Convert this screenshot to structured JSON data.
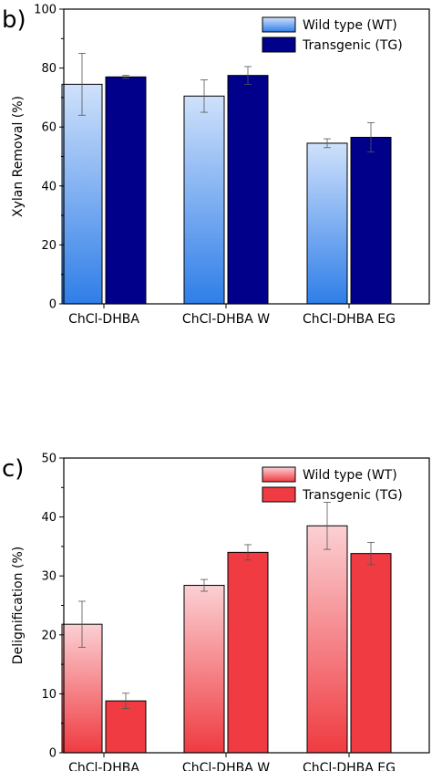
{
  "chart_data": [
    {
      "type": "bar",
      "panel_label": "b)",
      "ylabel": "Xylan Removal (%)",
      "xlabel": "",
      "ylim": [
        0,
        100
      ],
      "yticks": [
        0,
        20,
        40,
        60,
        80,
        100
      ],
      "categories": [
        "ChCl-DHBA",
        "ChCl-DHBA W",
        "ChCl-DHBA EG"
      ],
      "legend_position": "top-right",
      "grid": false,
      "series": [
        {
          "name": "Wild type (WT)",
          "values": [
            74.5,
            70.5,
            54.5
          ],
          "errors": [
            10.5,
            5.5,
            1.5
          ],
          "color_top": "#cfe1fb",
          "color_bottom": "#2f7ee8"
        },
        {
          "name": "Transgenic (TG)",
          "values": [
            77,
            77.5,
            56.5
          ],
          "errors": [
            0.5,
            3,
            5
          ],
          "color_top": "#00008b",
          "color_bottom": "#00008b"
        }
      ]
    },
    {
      "type": "bar",
      "panel_label": "c)",
      "ylabel": "Delignification (%)",
      "xlabel": "",
      "ylim": [
        0,
        50
      ],
      "yticks": [
        0,
        10,
        20,
        30,
        40,
        50
      ],
      "categories": [
        "ChCl-DHBA",
        "ChCl-DHBA W",
        "ChCl-DHBA EG"
      ],
      "legend_position": "top-right",
      "grid": false,
      "series": [
        {
          "name": "Wild type (WT)",
          "values": [
            21.8,
            28.4,
            38.5
          ],
          "errors": [
            3.9,
            1,
            4
          ],
          "color_top": "#fbd0d3",
          "color_bottom": "#ef3b41"
        },
        {
          "name": "Transgenic (TG)",
          "values": [
            8.8,
            34,
            33.8
          ],
          "errors": [
            1.3,
            1.3,
            1.9
          ],
          "color_top": "#ef3b41",
          "color_bottom": "#ef3b41"
        }
      ]
    }
  ]
}
